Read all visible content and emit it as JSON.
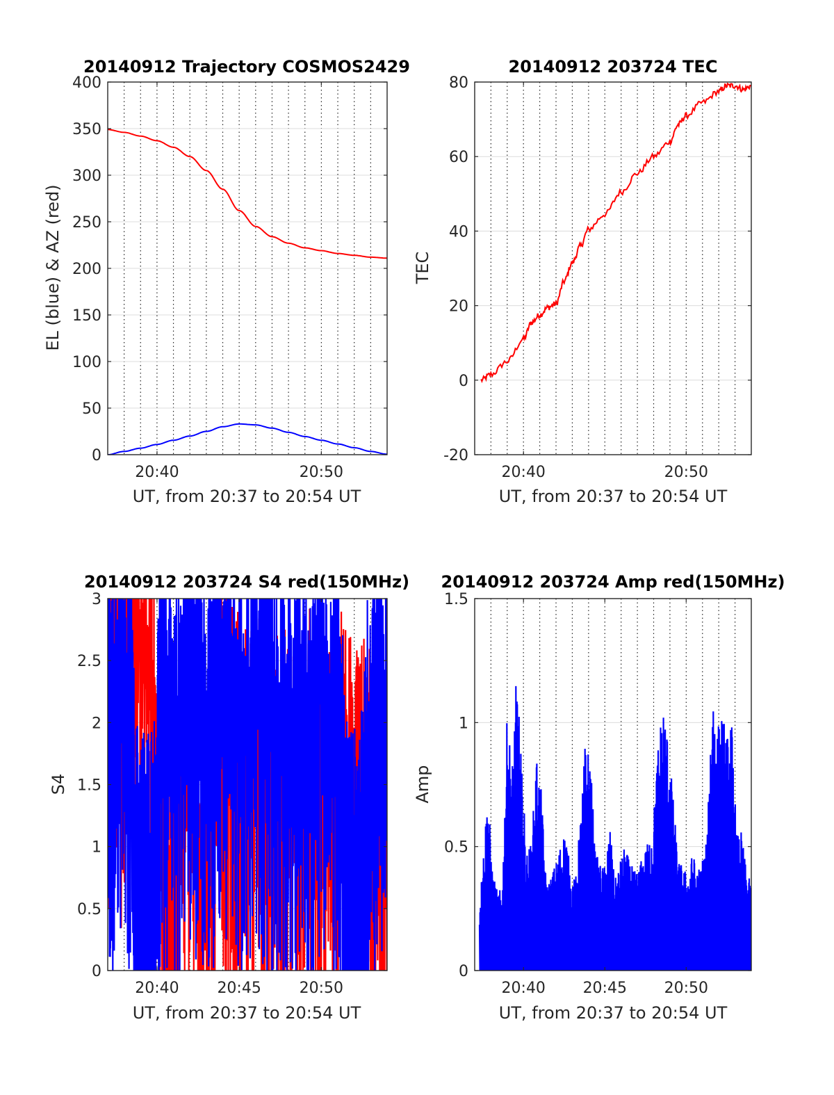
{
  "chart_data": [
    {
      "type": "line",
      "title": "20140912 Trajectory COSMOS2429",
      "xlabel": "UT, from 20:37 to 20:54 UT",
      "ylabel": "EL (blue) & AZ (red)",
      "xlim": [
        20.6167,
        20.9
      ],
      "ylim": [
        0,
        400
      ],
      "yticks": [
        0,
        50,
        100,
        150,
        200,
        250,
        300,
        350,
        400
      ],
      "xticks": [
        {
          "value": 20.6667,
          "label": "20:40"
        },
        {
          "value": 20.8333,
          "label": "20:50"
        }
      ],
      "grid": "major y solid, minor x dotted",
      "series": [
        {
          "color": "#ff0000",
          "x": [
            20.6167,
            20.6333,
            20.65,
            20.6667,
            20.6833,
            20.7,
            20.7167,
            20.7333,
            20.75,
            20.7667,
            20.7833,
            20.8,
            20.8167,
            20.8333,
            20.85,
            20.8667,
            20.8833,
            20.9
          ],
          "y": [
            349,
            346,
            342,
            337,
            330,
            320,
            305,
            285,
            262,
            245,
            234,
            227,
            222,
            219,
            216,
            214,
            212,
            211
          ]
        },
        {
          "color": "#0000ff",
          "x": [
            20.6167,
            20.6333,
            20.65,
            20.6667,
            20.6833,
            20.7,
            20.7167,
            20.7333,
            20.75,
            20.7667,
            20.7833,
            20.8,
            20.8167,
            20.8333,
            20.85,
            20.8667,
            20.8833,
            20.9
          ],
          "y": [
            0,
            3.5,
            7,
            11,
            15.5,
            20,
            25,
            30,
            33,
            32,
            28.5,
            24,
            19.5,
            15.5,
            11.5,
            7.5,
            3.5,
            0.5
          ]
        }
      ]
    },
    {
      "type": "line",
      "title": "20140912 203724 TEC",
      "xlabel": "UT, from 20:37 to 20:54 UT",
      "ylabel": "TEC",
      "xlim": [
        20.6167,
        20.9
      ],
      "ylim": [
        -20,
        80
      ],
      "yticks": [
        -20,
        0,
        20,
        40,
        60,
        80
      ],
      "xticks": [
        {
          "value": 20.6667,
          "label": "20:40"
        },
        {
          "value": 20.8333,
          "label": "20:50"
        }
      ],
      "grid": "major y solid, minor x dotted",
      "series": [
        {
          "color": "#ff0000",
          "x": [
            20.6233,
            20.6333,
            20.65,
            20.6667,
            20.675,
            20.6833,
            20.6917,
            20.7,
            20.7083,
            20.7167,
            20.725,
            20.7333,
            20.75,
            20.7667,
            20.7833,
            20.8,
            20.8167,
            20.825,
            20.8333,
            20.85,
            20.8667,
            20.875,
            20.8833,
            20.8917,
            20.9
          ],
          "y": [
            0,
            1.5,
            5,
            11,
            15.5,
            17.5,
            19.5,
            20.5,
            26.5,
            31.5,
            36,
            40.5,
            44.5,
            50.5,
            55.5,
            60,
            64,
            68.5,
            71,
            74.5,
            77.5,
            79,
            79,
            78,
            79
          ]
        }
      ]
    },
    {
      "type": "line",
      "title": "20140912 203724 S4 red(150MHz)",
      "xlabel": "UT, from 20:37 to 20:54 UT",
      "ylabel": "S4",
      "xlim": [
        20.6167,
        20.9
      ],
      "ylim": [
        0,
        3
      ],
      "yticks": [
        0,
        0.5,
        1,
        1.5,
        2,
        2.5,
        3
      ],
      "xticks": [
        {
          "value": 20.6667,
          "label": "20:40"
        },
        {
          "value": 20.75,
          "label": "20:45"
        },
        {
          "value": 20.8333,
          "label": "20:50"
        }
      ],
      "grid": "major y solid, minor x dotted",
      "series": [
        {
          "color": "#ff0000",
          "x": [
            20.6167,
            20.63,
            20.645,
            20.66,
            20.67,
            20.68,
            20.69,
            20.7,
            20.71,
            20.72,
            20.73,
            20.74,
            20.75,
            20.76,
            20.77,
            20.78,
            20.79,
            20.8,
            20.81,
            20.82,
            20.83,
            20.84,
            20.85,
            20.86,
            20.87,
            20.88,
            20.89,
            20.9
          ],
          "y": [
            3,
            2.8,
            3,
            2.6,
            1.5,
            0.6,
            1.8,
            2.1,
            0.8,
            1.5,
            2.3,
            1.9,
            1.8,
            1.7,
            1.8,
            1.9,
            1.7,
            1.8,
            1.5,
            1.9,
            1.5,
            1.7,
            2.0,
            1.6,
            1.8,
            1.6,
            1.5,
            1.3
          ]
        },
        {
          "color": "#0000ff",
          "x": [
            20.6167,
            20.62,
            20.63,
            20.64,
            20.645,
            20.65,
            20.655,
            20.66,
            20.665,
            20.67,
            20.68,
            20.69,
            20.7,
            20.71,
            20.72,
            20.73,
            20.74,
            20.75,
            20.76,
            20.77,
            20.78,
            20.79,
            20.8,
            20.81,
            20.82,
            20.83,
            20.84,
            20.85,
            20.86,
            20.865,
            20.87,
            20.875,
            20.88,
            20.89,
            20.9
          ],
          "y": [
            3,
            1.9,
            2.6,
            2.2,
            0.95,
            0.9,
            0.9,
            0.92,
            1.0,
            2.6,
            2.3,
            2.0,
            2.5,
            2.3,
            2.1,
            2.7,
            2.5,
            2.2,
            2.3,
            2.6,
            2.4,
            2.1,
            2.2,
            2.3,
            2.0,
            2.6,
            2.3,
            2.4,
            1.0,
            0.9,
            0.85,
            1.05,
            1.9,
            2.5,
            2.2
          ]
        }
      ]
    },
    {
      "type": "line",
      "title": "20140912 203724 Amp red(150MHz)",
      "xlabel": "UT, from 20:37 to 20:54 UT",
      "ylabel": "Amp",
      "xlim": [
        20.6167,
        20.9
      ],
      "ylim": [
        0,
        1.5
      ],
      "yticks": [
        0,
        0.5,
        1,
        1.5
      ],
      "xticks": [
        {
          "value": 20.6667,
          "label": "20:40"
        },
        {
          "value": 20.75,
          "label": "20:45"
        },
        {
          "value": 20.8333,
          "label": "20:50"
        }
      ],
      "grid": "major y solid, minor x dotted",
      "series": [
        {
          "color": "#0000ff",
          "x": [
            20.6217,
            20.625,
            20.63,
            20.635,
            20.64,
            20.645,
            20.65,
            20.655,
            20.66,
            20.665,
            20.67,
            20.675,
            20.68,
            20.685,
            20.69,
            20.695,
            20.7,
            20.705,
            20.71,
            20.715,
            20.72,
            20.725,
            20.73,
            20.735,
            20.74,
            20.745,
            20.75,
            20.755,
            20.76,
            20.765,
            20.77,
            20.775,
            20.78,
            20.785,
            20.79,
            20.795,
            20.8,
            20.805,
            20.81,
            20.815,
            20.82,
            20.825,
            20.83,
            20.835,
            20.84,
            20.845,
            20.85,
            20.855,
            20.86,
            20.865,
            20.87,
            20.875,
            20.88,
            20.885,
            20.89,
            20.895,
            20.9
          ],
          "y": [
            0.27,
            0.45,
            0.74,
            0.4,
            0.32,
            0.33,
            1.05,
            0.82,
            1.24,
            0.8,
            0.48,
            0.52,
            0.88,
            0.72,
            0.35,
            0.38,
            0.44,
            0.52,
            0.58,
            0.38,
            0.37,
            0.62,
            0.93,
            0.88,
            0.49,
            0.43,
            0.42,
            0.6,
            0.36,
            0.43,
            0.5,
            0.45,
            0.4,
            0.42,
            0.48,
            0.53,
            0.63,
            0.95,
            1.1,
            0.93,
            0.7,
            0.45,
            0.42,
            0.39,
            0.48,
            0.4,
            0.46,
            0.55,
            1.22,
            0.98,
            1.05,
            0.95,
            1.0,
            0.55,
            0.56,
            0.4,
            0.35
          ]
        }
      ]
    }
  ]
}
